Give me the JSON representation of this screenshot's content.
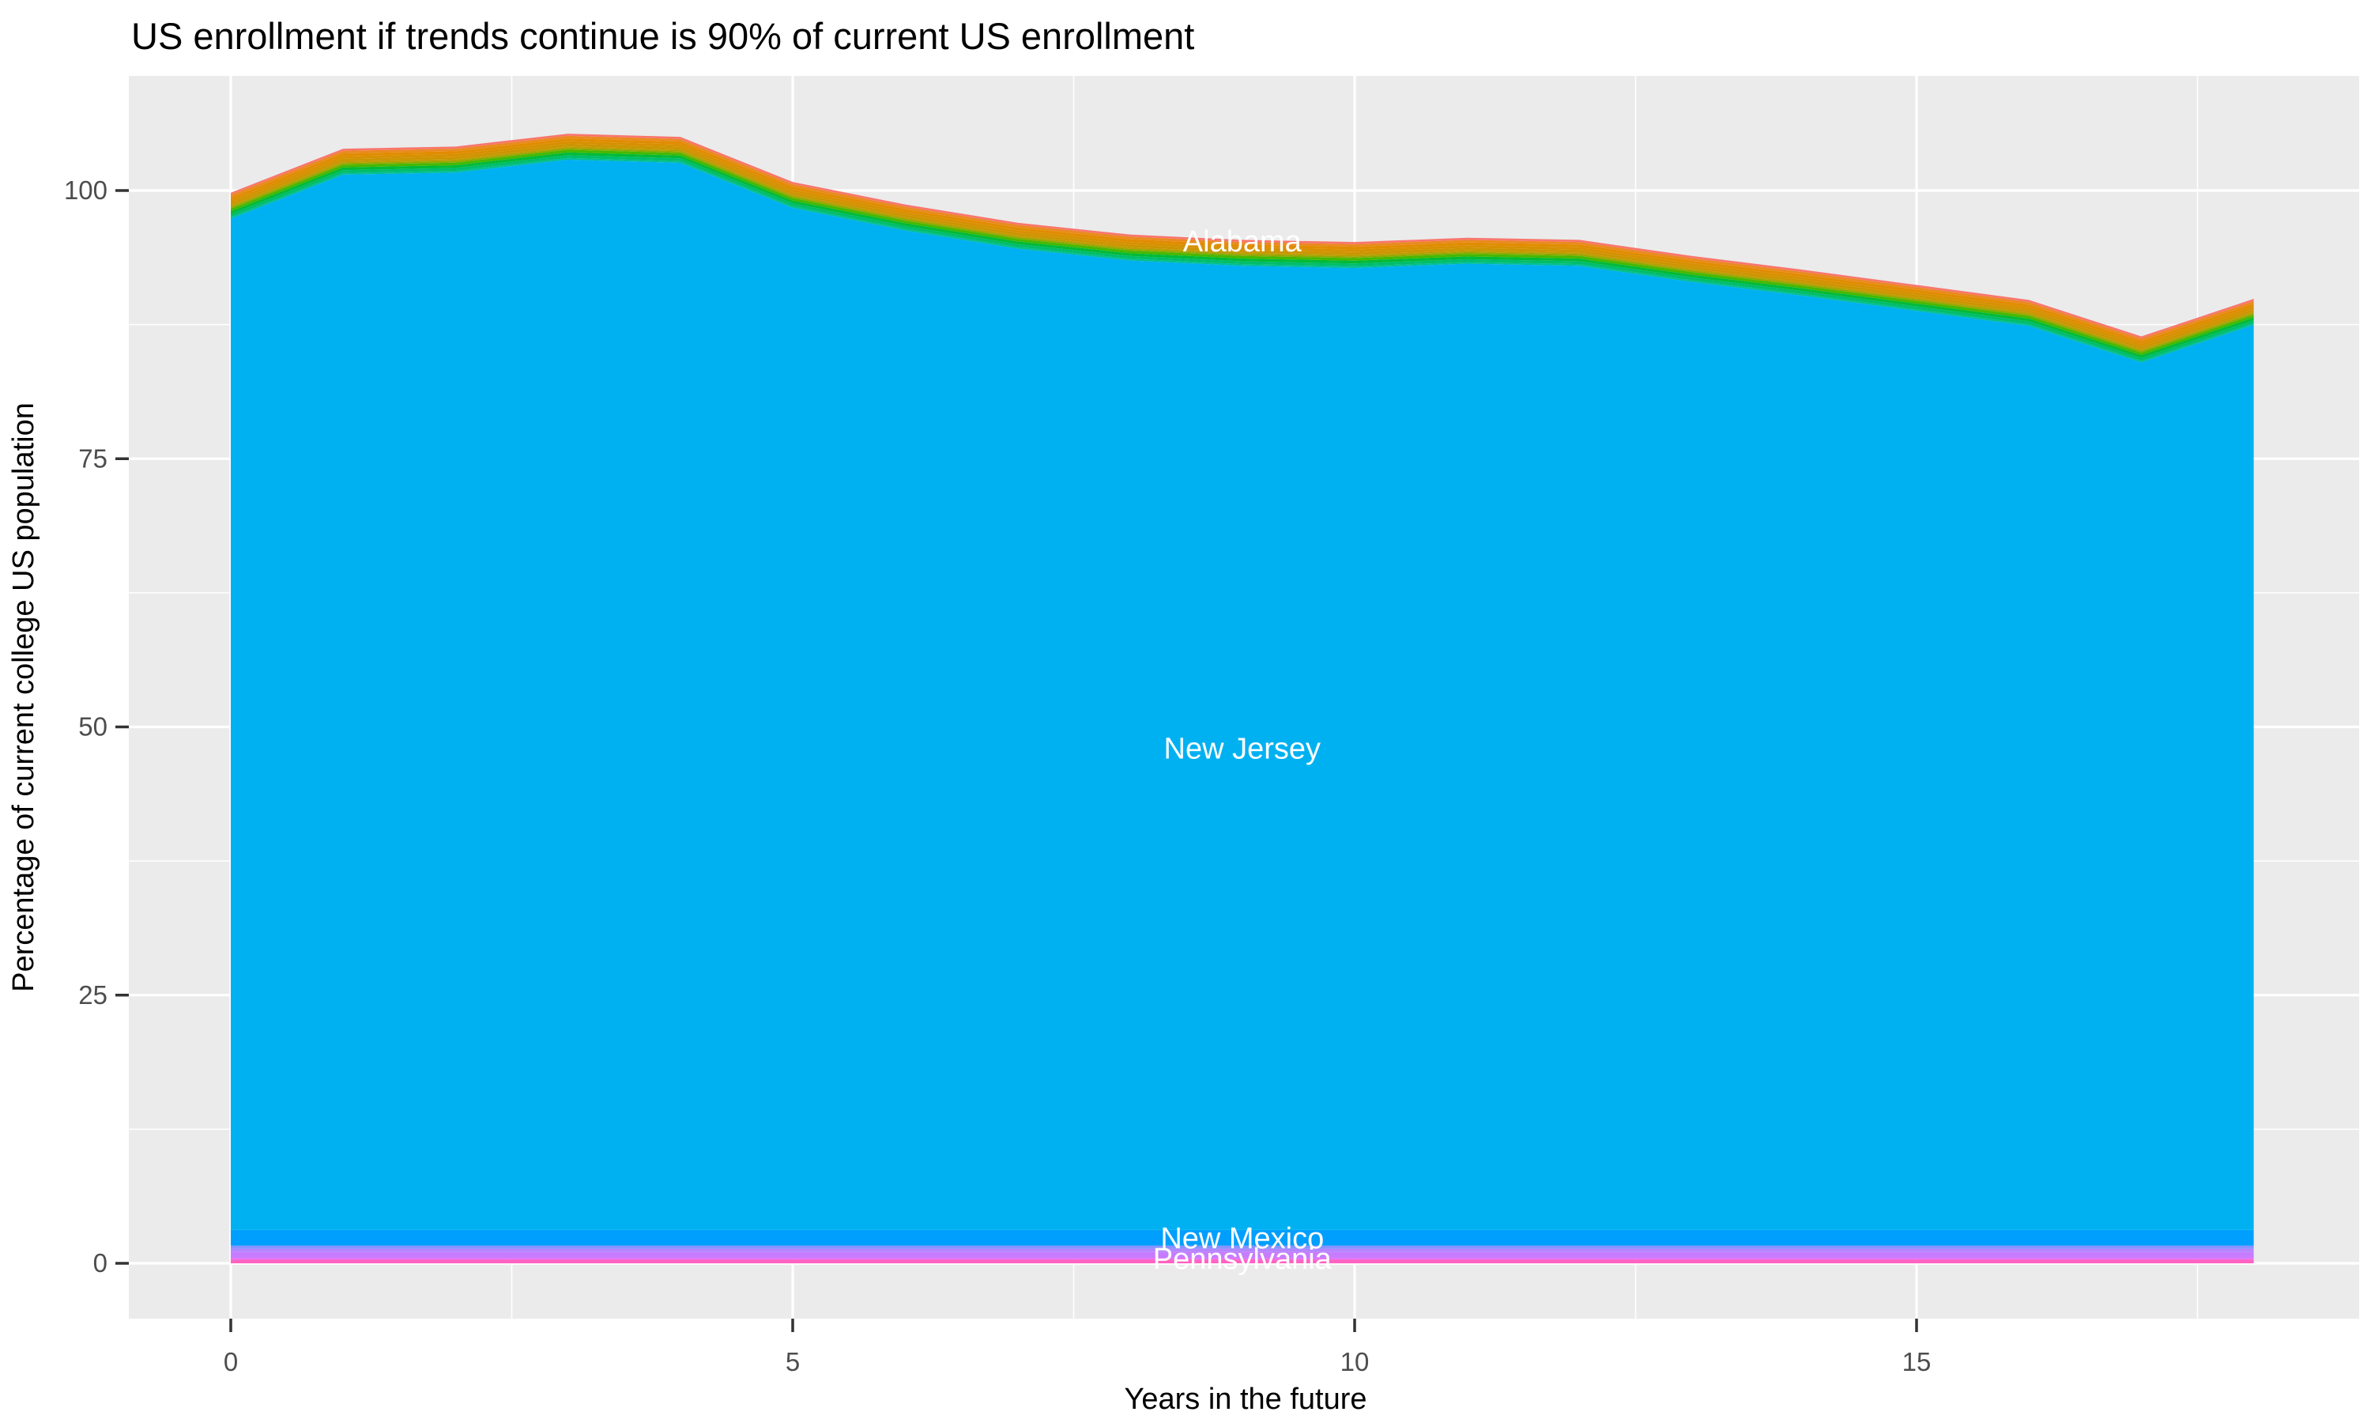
{
  "chart": {
    "title": "US enrollment if trends continue is 90% of current US enrollment",
    "xlabel": "Years in the future",
    "ylabel": "Percentage of current college US population"
  },
  "colors": {
    "panel_background": "#EBEBEB",
    "grid_line": "#FFFFFF",
    "tick_mark": "#333333",
    "tick_label_text": "#4D4D4D",
    "title_text": "#000000",
    "area_label_text": "#FFFFFF"
  },
  "chart_data": {
    "type": "area",
    "stacked": true,
    "legend": "none",
    "grid": "white major and minor gridlines on gray panel",
    "x": [
      0,
      1,
      2,
      3,
      4,
      5,
      6,
      7,
      8,
      9,
      10,
      11,
      12,
      13,
      14,
      15,
      16,
      17,
      18
    ],
    "xlim": [
      -0.9,
      18.9
    ],
    "ylim": [
      -5.2,
      110.6
    ],
    "x_ticks": [
      0,
      5,
      10,
      15
    ],
    "x_minor_ticks": [
      2.5,
      7.5,
      12.5,
      17.5
    ],
    "y_ticks": [
      0,
      25,
      50,
      75,
      100
    ],
    "y_minor_ticks": [
      12.5,
      37.5,
      62.5,
      87.5
    ],
    "stack_top_total": [
      99.8,
      103.9,
      104.1,
      105.3,
      105.0,
      100.8,
      98.7,
      97.0,
      95.9,
      95.4,
      95.2,
      95.6,
      95.4,
      93.9,
      92.6,
      91.2,
      89.8,
      86.4,
      89.9
    ],
    "layers_bottom_to_top": [
      {
        "name": "bottom pink band",
        "color": "#FF62C1",
        "thickness_pct": 0.35
      },
      {
        "name": "orchid band",
        "color": "#E76BF3",
        "thickness_pct": 0.15
      },
      {
        "name": "Pennsylvania",
        "color": "#C77CFF",
        "thickness_pct": 0.55
      },
      {
        "name": "light purple band",
        "color": "#B584FF",
        "thickness_pct": 0.3
      },
      {
        "name": "periwinkle band",
        "color": "#8A93FF",
        "thickness_pct": 0.3
      },
      {
        "name": "New Mexico",
        "color": "#009FFE",
        "thickness_pct": 1.45
      },
      {
        "name": "New Jersey",
        "color": "#00B1F1",
        "thickness_pct": "remainder"
      },
      {
        "name": "teal green band",
        "color": "#00BF92",
        "thickness_pct": 0.16
      },
      {
        "name": "green band 3",
        "color": "#00BD6C",
        "thickness_pct": 0.26
      },
      {
        "name": "green band 2",
        "color": "#00BA38",
        "thickness_pct": 0.26
      },
      {
        "name": "green band 1",
        "color": "#46B800",
        "thickness_pct": 0.24
      },
      {
        "name": "yellow green band",
        "color": "#8CA900",
        "thickness_pct": 0.16
      },
      {
        "name": "olive band",
        "color": "#BB9D00",
        "thickness_pct": 0.16
      },
      {
        "name": "orange band 4",
        "color": "#CD9400",
        "thickness_pct": 0.24
      },
      {
        "name": "orange band 3",
        "color": "#D79000",
        "thickness_pct": 0.24
      },
      {
        "name": "orange band 2",
        "color": "#E18C00",
        "thickness_pct": 0.26
      },
      {
        "name": "orange band 1",
        "color": "#EA8A1F",
        "thickness_pct": 0.24
      },
      {
        "name": "Alabama",
        "color": "#F8766D",
        "thickness_pct": 0.2
      }
    ],
    "annotations": [
      {
        "label": "Alabama",
        "x": 9,
        "y_pct": 95.3
      },
      {
        "label": "New Jersey",
        "x": 9,
        "y_pct": 48.0
      },
      {
        "label": "New Mexico",
        "x": 9,
        "y_pct": 2.35
      },
      {
        "label": "Pennsylvania",
        "x": 9,
        "y_pct": 0.45
      }
    ]
  }
}
